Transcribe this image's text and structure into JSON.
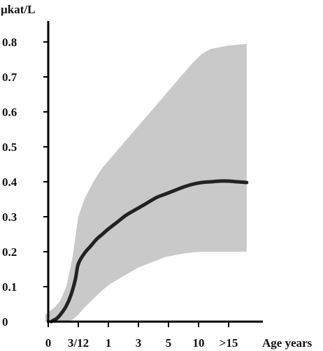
{
  "chart_data": {
    "type": "area",
    "ylabel": "µkat/L",
    "xlabel": "Age years",
    "ylim": [
      0,
      0.8
    ],
    "y_ticks": [
      "0",
      "0.1",
      "0.2",
      "0.3",
      "0.4",
      "0.5",
      "0.6",
      "0.7",
      "0.8"
    ],
    "y_tick_values": [
      0,
      0.1,
      0.2,
      0.3,
      0.4,
      0.5,
      0.6,
      0.7,
      0.8
    ],
    "x_ticks": [
      "0",
      "3/12",
      "1",
      "3",
      "5",
      "10",
      ">15"
    ],
    "grid": false,
    "legend": "none",
    "colors": {
      "band": "#c9c9c9",
      "line": "#222222",
      "axis": "#000000"
    },
    "series": [
      {
        "kind": "line",
        "x": [
          0.1,
          0.2,
          0.3,
          0.45,
          0.6,
          0.75,
          0.9,
          1.0,
          1.2,
          1.4,
          1.6,
          1.8,
          2.0,
          2.3,
          2.6,
          3.0,
          3.3,
          3.6,
          3.9,
          4.2,
          4.5,
          4.8,
          5.1,
          5.4,
          5.7,
          6.0,
          6.3,
          6.6
        ],
        "y": [
          0.0,
          0.005,
          0.01,
          0.025,
          0.045,
          0.075,
          0.12,
          0.165,
          0.195,
          0.215,
          0.235,
          0.25,
          0.265,
          0.285,
          0.305,
          0.325,
          0.34,
          0.355,
          0.365,
          0.375,
          0.385,
          0.393,
          0.398,
          0.4,
          0.402,
          0.402,
          0.4,
          0.398
        ]
      },
      {
        "kind": "band",
        "x": [
          -0.1,
          0.2,
          0.4,
          0.6,
          0.8,
          1.0,
          1.2,
          1.5,
          1.8,
          2.1,
          2.4,
          2.7,
          3.0,
          3.3,
          3.6,
          3.9,
          4.2,
          4.5,
          4.8,
          5.1,
          5.4,
          5.7,
          6.0,
          6.3,
          6.6
        ],
        "upper": [
          0.02,
          0.04,
          0.06,
          0.1,
          0.18,
          0.3,
          0.35,
          0.4,
          0.44,
          0.47,
          0.5,
          0.53,
          0.56,
          0.59,
          0.62,
          0.65,
          0.68,
          0.71,
          0.74,
          0.765,
          0.78,
          0.785,
          0.79,
          0.792,
          0.795
        ],
        "lower": [
          0.0,
          0.0,
          0.0,
          0.0,
          0.005,
          0.02,
          0.04,
          0.065,
          0.09,
          0.11,
          0.125,
          0.14,
          0.155,
          0.165,
          0.175,
          0.185,
          0.19,
          0.195,
          0.198,
          0.2,
          0.2,
          0.2,
          0.2,
          0.2,
          0.2
        ]
      }
    ]
  }
}
